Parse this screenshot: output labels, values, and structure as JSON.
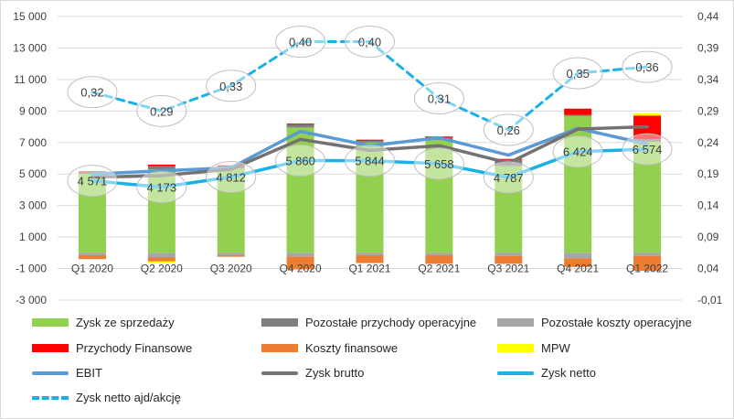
{
  "chart_data": {
    "type": "bar",
    "categories": [
      "Q1 2020",
      "Q2 2020",
      "Q3 2020",
      "Q4 2020",
      "Q1 2021",
      "Q2 2021",
      "Q3 2021",
      "Q4 2021",
      "Q1 2022"
    ],
    "y_left": {
      "ylim": [
        -3000,
        15000
      ],
      "ticks": [
        "-3 000",
        "-1 000",
        "1 000",
        "3 000",
        "5 000",
        "7 000",
        "9 000",
        "11 000",
        "13 000",
        "15 000"
      ],
      "tick_values": [
        -3000,
        -1000,
        1000,
        3000,
        5000,
        7000,
        9000,
        11000,
        13000,
        15000
      ]
    },
    "y_right": {
      "ylim": [
        -0.01,
        0.44
      ],
      "ticks": [
        "-0,01",
        "0,04",
        "0,09",
        "0,14",
        "0,19",
        "0,24",
        "0,29",
        "0,34",
        "0,39",
        "0,44"
      ],
      "tick_values": [
        -0.01,
        0.04,
        0.09,
        0.14,
        0.19,
        0.24,
        0.29,
        0.34,
        0.39,
        0.44
      ]
    },
    "grid": true,
    "legend_position": "bottom",
    "bar_series": [
      {
        "name": "Zysk ze sprzedaży",
        "color": "#92d050",
        "values": [
          5000,
          5300,
          5350,
          7950,
          7000,
          7150,
          5500,
          8700,
          7050
        ]
      },
      {
        "name": "Pozostałe przychody operacyjne",
        "color": "#7f7f7f",
        "values": [
          120,
          200,
          150,
          200,
          150,
          150,
          400,
          50,
          150
        ]
      },
      {
        "name": "Pozostałe koszty operacyjne",
        "color": "#a6a6a6",
        "values": [
          -150,
          -300,
          -150,
          -250,
          -150,
          -150,
          -200,
          -350,
          -200
        ]
      },
      {
        "name": "Przychody Finansowe",
        "color": "#ff0000",
        "values": [
          50,
          100,
          50,
          50,
          30,
          80,
          60,
          400,
          1500
        ]
      },
      {
        "name": "Koszty finansowe",
        "color": "#ed7d31",
        "values": [
          -250,
          -250,
          -100,
          -800,
          -500,
          -550,
          -500,
          -550,
          -950
        ]
      },
      {
        "name": "MPW",
        "color": "#ffff00",
        "values": [
          0,
          -100,
          0,
          0,
          0,
          0,
          0,
          0,
          150
        ]
      }
    ],
    "line_series": [
      {
        "name": "EBIT",
        "color": "#5b9bd5",
        "axis": "left",
        "values": [
          5000,
          5200,
          5400,
          7700,
          6800,
          7300,
          6200,
          7900,
          6900
        ]
      },
      {
        "name": "Zysk brutto",
        "color": "#767171",
        "axis": "left",
        "values": [
          4800,
          4900,
          5300,
          7200,
          6500,
          6800,
          5700,
          7850,
          8000
        ]
      },
      {
        "name": "Zysk netto",
        "color": "#1ab2e6",
        "axis": "left",
        "values": [
          4571,
          4173,
          4812,
          5860,
          5844,
          5658,
          4787,
          6424,
          6574
        ],
        "labels": [
          "4 571",
          "4 173",
          "4 812",
          "5 860",
          "5 844",
          "5 658",
          "4 787",
          "6 424",
          "6 574"
        ]
      },
      {
        "name": "Zysk netto ajd/akcję",
        "color": "#1ab2e6",
        "axis": "right",
        "dashed": true,
        "values": [
          0.32,
          0.29,
          0.33,
          0.4,
          0.4,
          0.31,
          0.26,
          0.35,
          0.36
        ],
        "labels": [
          "0,32",
          "0,29",
          "0,33",
          "0,40",
          "0,40",
          "0,31",
          "0,26",
          "0,35",
          "0,36"
        ]
      }
    ]
  },
  "legend": {
    "items": [
      {
        "label": "Zysk ze sprzedaży",
        "kind": "swatch",
        "color": "#92d050"
      },
      {
        "label": "Pozostałe przychody operacyjne",
        "kind": "swatch",
        "color": "#7f7f7f"
      },
      {
        "label": "Pozostałe koszty operacyjne",
        "kind": "swatch",
        "color": "#a6a6a6"
      },
      {
        "label": "Przychody Finansowe",
        "kind": "swatch",
        "color": "#ff0000"
      },
      {
        "label": "Koszty finansowe",
        "kind": "swatch",
        "color": "#ed7d31"
      },
      {
        "label": "MPW",
        "kind": "swatch",
        "color": "#ffff00"
      },
      {
        "label": "EBIT",
        "kind": "line",
        "color": "#5b9bd5"
      },
      {
        "label": "Zysk brutto",
        "kind": "line",
        "color": "#767171"
      },
      {
        "label": "Zysk netto",
        "kind": "line",
        "color": "#1ab2e6"
      },
      {
        "label": "Zysk netto ajd/akcję",
        "kind": "dash",
        "color": "#1ab2e6"
      }
    ]
  }
}
